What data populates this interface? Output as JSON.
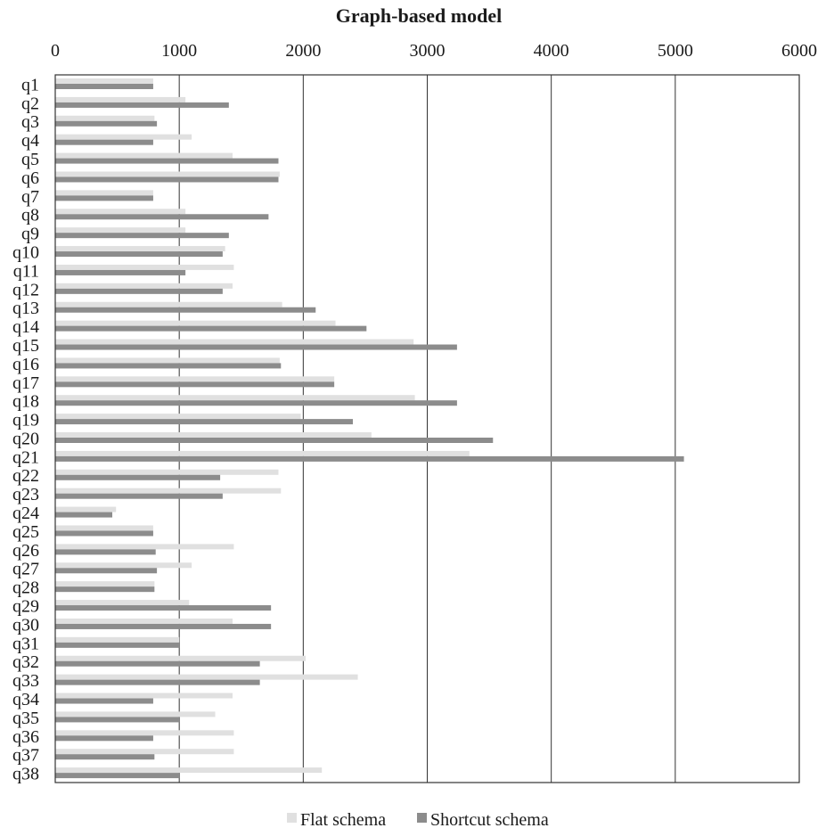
{
  "chart_data": {
    "type": "bar",
    "orientation": "horizontal",
    "title": "Graph-based model",
    "xlabel": "",
    "ylabel": "",
    "xlim": [
      0,
      6000
    ],
    "x_ticks": [
      "0",
      "1000",
      "2000",
      "3000",
      "4000",
      "5000",
      "6000"
    ],
    "x_axis_position": "top",
    "grid": true,
    "legend_position": "bottom",
    "categories": [
      "q1",
      "q2",
      "q3",
      "q4",
      "q5",
      "q6",
      "q7",
      "q8",
      "q9",
      "q10",
      "q11",
      "q12",
      "q13",
      "q14",
      "q15",
      "q16",
      "q17",
      "q18",
      "q19",
      "q20",
      "q21",
      "q22",
      "q23",
      "q24",
      "q25",
      "q26",
      "q27",
      "q28",
      "q29",
      "q30",
      "q31",
      "q32",
      "q33",
      "q34",
      "q35",
      "q36",
      "q37",
      "q38"
    ],
    "series": [
      {
        "name": "Flat schema",
        "color": "#e0e0e0",
        "values": [
          790,
          1050,
          800,
          1100,
          1430,
          1810,
          790,
          1050,
          1050,
          1370,
          1440,
          1430,
          1830,
          2260,
          2890,
          1810,
          2250,
          2900,
          1980,
          2550,
          3340,
          1800,
          1820,
          490,
          790,
          1440,
          1100,
          800,
          1080,
          1430,
          1000,
          2020,
          2440,
          1430,
          1290,
          1440,
          1440,
          2150
        ]
      },
      {
        "name": "Shortcut schema",
        "color": "#8c8c8c",
        "values": [
          790,
          1400,
          820,
          790,
          1800,
          1800,
          790,
          1720,
          1400,
          1350,
          1050,
          1350,
          2100,
          2510,
          3240,
          1820,
          2250,
          3240,
          2400,
          3530,
          5070,
          1330,
          1350,
          460,
          790,
          810,
          820,
          800,
          1740,
          1740,
          1000,
          1650,
          1650,
          790,
          1000,
          790,
          800,
          1000
        ]
      }
    ]
  }
}
